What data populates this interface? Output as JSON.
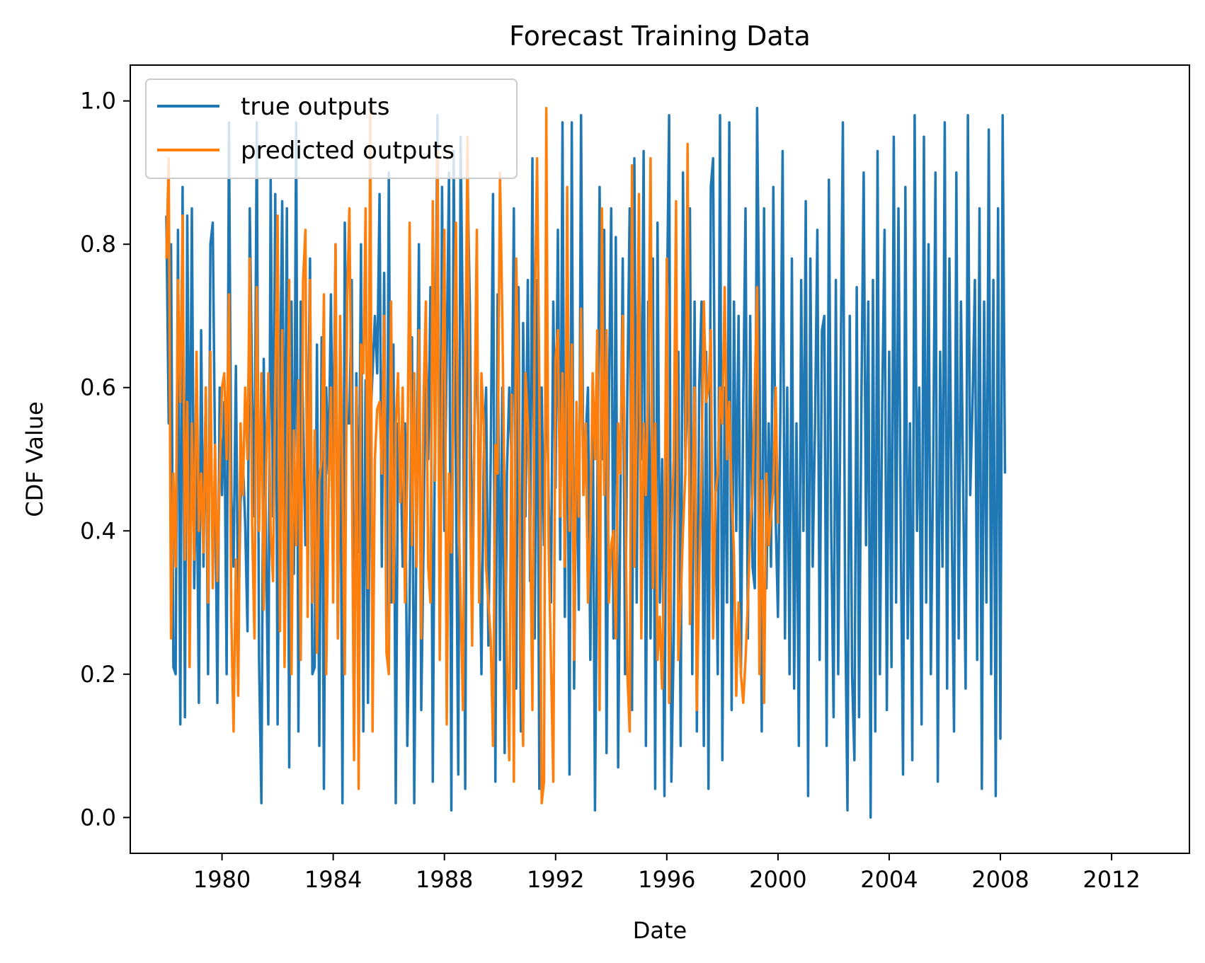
{
  "chart_data": {
    "type": "line",
    "title": "Forecast Training Data",
    "xlabel": "Date",
    "ylabel": "CDF Value",
    "x_unit": "year",
    "xlim": [
      1976.7,
      2014.8
    ],
    "ylim": [
      -0.05,
      1.05
    ],
    "x_ticks": [
      1980,
      1984,
      1988,
      1992,
      1996,
      2000,
      2004,
      2008,
      2012
    ],
    "x_tick_labels": [
      "1980",
      "1984",
      "1988",
      "1992",
      "1996",
      "2000",
      "2004",
      "2008",
      "2012"
    ],
    "y_ticks": [
      0.0,
      0.2,
      0.4,
      0.6,
      0.8,
      1.0
    ],
    "y_tick_labels": [
      "0.0",
      "0.2",
      "0.4",
      "0.6",
      "0.8",
      "1.0"
    ],
    "grid": false,
    "legend_position": "top-left",
    "x_start": 1978.0,
    "x_step": 0.08333,
    "series": [
      {
        "name": "true outputs",
        "color": "#1f77b4",
        "values": [
          0.84,
          0.55,
          0.8,
          0.21,
          0.2,
          0.82,
          0.13,
          0.88,
          0.14,
          0.84,
          0.4,
          0.85,
          0.32,
          0.52,
          0.16,
          0.68,
          0.35,
          0.6,
          0.2,
          0.8,
          0.83,
          0.5,
          0.16,
          0.6,
          0.45,
          0.58,
          0.2,
          0.97,
          0.45,
          0.35,
          0.63,
          0.26,
          0.44,
          0.5,
          0.41,
          0.26,
          0.85,
          0.6,
          0.42,
          0.97,
          0.22,
          0.02,
          0.64,
          0.4,
          0.13,
          0.89,
          0.42,
          0.87,
          0.13,
          0.6,
          0.86,
          0.4,
          0.85,
          0.07,
          0.72,
          0.34,
          0.97,
          0.12,
          0.72,
          0.56,
          0.38,
          0.5,
          0.78,
          0.2,
          0.21,
          0.66,
          0.1,
          0.67,
          0.04,
          0.6,
          0.48,
          0.73,
          0.47,
          0.8,
          0.25,
          0.64,
          0.02,
          0.83,
          0.55,
          0.55,
          0.75,
          0.1,
          0.62,
          0.37,
          0.8,
          0.12,
          0.61,
          0.16,
          0.55,
          0.62,
          0.7,
          0.62,
          0.87,
          0.35,
          0.76,
          0.25,
          0.9,
          0.3,
          0.66,
          0.02,
          0.55,
          0.52,
          0.35,
          0.55,
          0.1,
          0.3,
          0.67,
          0.02,
          0.43,
          0.8,
          0.15,
          0.38,
          0.68,
          0.5,
          0.74,
          0.05,
          0.6,
          0.98,
          0.25,
          0.88,
          0.4,
          0.65,
          0.9,
          0.01,
          0.93,
          0.47,
          0.06,
          0.95,
          0.67,
          0.04,
          0.89,
          0.71,
          0.3,
          0.55,
          0.68,
          0.43,
          0.2,
          0.5,
          0.6,
          0.24,
          0.5,
          0.87,
          0.05,
          0.73,
          0.22,
          0.6,
          0.09,
          0.48,
          0.6,
          0.5,
          0.85,
          0.18,
          0.74,
          0.12,
          0.69,
          0.42,
          0.75,
          0.33,
          0.92,
          0.25,
          0.75,
          0.04,
          0.6,
          0.38,
          0.65,
          0.45,
          0.3,
          0.72,
          0.46,
          0.82,
          0.36,
          0.97,
          0.28,
          0.71,
          0.06,
          0.97,
          0.18,
          0.55,
          0.29,
          0.98,
          0.45,
          0.53,
          0.6,
          0.22,
          0.6,
          0.01,
          0.43,
          0.88,
          0.5,
          0.82,
          0.09,
          0.58,
          0.85,
          0.25,
          0.81,
          0.07,
          0.45,
          0.78,
          0.2,
          0.6,
          0.85,
          0.15,
          0.92,
          0.3,
          0.8,
          0.5,
          0.93,
          0.1,
          0.72,
          0.25,
          0.78,
          0.04,
          0.83,
          0.3,
          0.5,
          0.03,
          0.7,
          0.98,
          0.05,
          0.25,
          0.65,
          0.65,
          0.1,
          0.9,
          0.5,
          0.6,
          0.85,
          0.2,
          0.72,
          0.12,
          0.6,
          0.72,
          0.1,
          0.65,
          0.04,
          0.88,
          0.92,
          0.45,
          0.2,
          0.98,
          0.08,
          0.6,
          0.3,
          0.97,
          0.15,
          0.72,
          0.4,
          0.7,
          0.2,
          0.58,
          0.85,
          0.25,
          0.7,
          0.35,
          0.32,
          0.99,
          0.65,
          0.12,
          0.85,
          0.32,
          0.55,
          0.35,
          0.88,
          0.42,
          0.28,
          0.55,
          0.93,
          0.25,
          0.6,
          0.2,
          0.78,
          0.18,
          0.55,
          0.1,
          0.75,
          0.4,
          0.86,
          0.03,
          0.78,
          0.35,
          0.55,
          0.82,
          0.22,
          0.68,
          0.7,
          0.1,
          0.89,
          0.4,
          0.14,
          0.75,
          0.2,
          0.6,
          0.97,
          0.3,
          0.01,
          0.7,
          0.2,
          0.08,
          0.74,
          0.14,
          0.57,
          0.9,
          0.38,
          0.72,
          0.0,
          0.75,
          0.12,
          0.93,
          0.2,
          0.58,
          0.82,
          0.15,
          0.65,
          0.21,
          0.95,
          0.3,
          0.85,
          0.4,
          0.06,
          0.88,
          0.25,
          0.55,
          0.08,
          0.98,
          0.4,
          0.6,
          0.13,
          0.95,
          0.3,
          0.8,
          0.2,
          0.5,
          0.9,
          0.05,
          0.65,
          0.35,
          0.97,
          0.18,
          0.78,
          0.42,
          0.12,
          0.9,
          0.25,
          0.72,
          0.45,
          0.18,
          0.98,
          0.45,
          0.58,
          0.75,
          0.22,
          0.85,
          0.04,
          0.72,
          0.3,
          0.96,
          0.2,
          0.75,
          0.03,
          0.85,
          0.11,
          0.98,
          0.48
        ]
      },
      {
        "name": "predicted outputs",
        "color": "#ff7f0e",
        "values": [
          0.78,
          0.92,
          0.25,
          0.48,
          0.35,
          0.75,
          0.58,
          0.84,
          0.36,
          0.58,
          0.21,
          0.55,
          0.36,
          0.65,
          0.4,
          0.48,
          0.37,
          0.6,
          0.3,
          0.65,
          0.32,
          0.52,
          0.33,
          0.48,
          0.6,
          0.62,
          0.5,
          0.73,
          0.28,
          0.12,
          0.36,
          0.17,
          0.55,
          0.45,
          0.6,
          0.5,
          0.78,
          0.41,
          0.25,
          0.74,
          0.4,
          0.62,
          0.29,
          0.48,
          0.62,
          0.4,
          0.33,
          0.6,
          0.84,
          0.26,
          0.68,
          0.21,
          0.48,
          0.75,
          0.2,
          0.54,
          0.38,
          0.61,
          0.22,
          0.75,
          0.82,
          0.28,
          0.75,
          0.3,
          0.54,
          0.23,
          0.47,
          0.5,
          0.73,
          0.2,
          0.45,
          0.6,
          0.3,
          0.8,
          0.25,
          0.7,
          0.48,
          0.2,
          0.72,
          0.85,
          0.52,
          0.08,
          0.6,
          0.04,
          0.66,
          0.62,
          0.85,
          0.32,
          0.99,
          0.12,
          0.5,
          0.57,
          0.58,
          0.48,
          0.7,
          0.23,
          0.2,
          0.72,
          0.3,
          0.55,
          0.62,
          0.44,
          0.6,
          0.3,
          0.48,
          0.83,
          0.38,
          0.62,
          0.35,
          0.68,
          0.25,
          0.58,
          0.72,
          0.35,
          0.3,
          0.86,
          0.47,
          0.93,
          0.22,
          0.6,
          0.82,
          0.13,
          0.48,
          0.37,
          0.6,
          0.83,
          0.45,
          0.3,
          0.15,
          0.62,
          0.95,
          0.47,
          0.24,
          0.55,
          0.82,
          0.3,
          0.62,
          0.55,
          0.35,
          0.3,
          0.25,
          0.1,
          0.52,
          0.48,
          0.9,
          0.7,
          0.43,
          0.22,
          0.08,
          0.59,
          0.05,
          0.78,
          0.6,
          0.26,
          0.1,
          0.62,
          0.55,
          0.42,
          0.15,
          0.7,
          0.92,
          0.6,
          0.02,
          0.05,
          0.99,
          0.38,
          0.22,
          0.05,
          0.64,
          0.68,
          0.42,
          0.62,
          0.35,
          0.88,
          0.4,
          0.66,
          0.22,
          0.58,
          0.42,
          0.71,
          0.45,
          0.55,
          0.3,
          0.4,
          0.62,
          0.5,
          0.68,
          0.15,
          0.85,
          0.45,
          0.68,
          0.3,
          0.38,
          0.4,
          0.25,
          0.55,
          0.48,
          0.7,
          0.47,
          0.2,
          0.12,
          0.91,
          0.35,
          0.55,
          0.87,
          0.25,
          0.55,
          0.45,
          0.6,
          0.92,
          0.32,
          0.55,
          0.22,
          0.28,
          0.18,
          0.38,
          0.78,
          0.16,
          0.4,
          0.5,
          0.86,
          0.22,
          0.3,
          0.4,
          0.48,
          0.94,
          0.27,
          0.43,
          0.6,
          0.15,
          0.34,
          0.48,
          0.72,
          0.58,
          0.6,
          0.68,
          0.25,
          0.45,
          0.48,
          0.6,
          0.55,
          0.74,
          0.5,
          0.58,
          0.45,
          0.37,
          0.17,
          0.3,
          0.2,
          0.16,
          0.22,
          0.3,
          0.4,
          0.45,
          0.6,
          0.74,
          0.2,
          0.47,
          0.16,
          0.48,
          0.38,
          0.42,
          0.46,
          0.6,
          0.41
        ]
      }
    ]
  }
}
